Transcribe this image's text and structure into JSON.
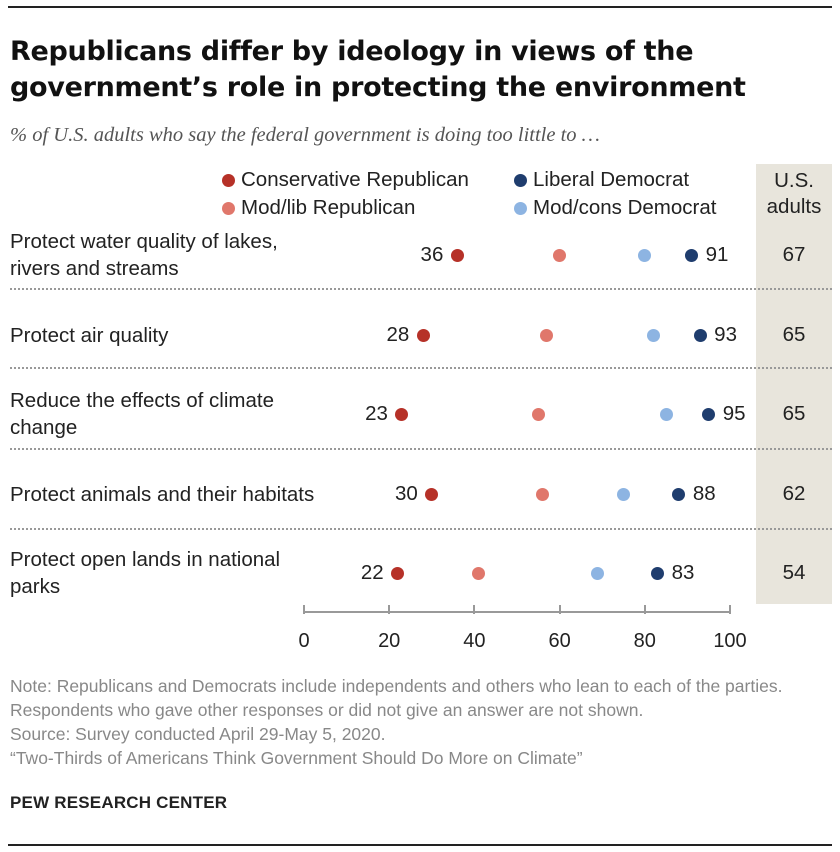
{
  "title": "Republicans differ by ideology in views of the government’s role in protecting the environment",
  "subtitle": "% of U.S. adults who say the federal government is doing too little to …",
  "us_header": "U.S. adults",
  "legend": {
    "conservative_republican": "Conservative Republican",
    "liberal_democrat": "Liberal Democrat",
    "modlib_republican": "Mod/lib Republican",
    "modcons_democrat": "Mod/cons Democrat"
  },
  "colors": {
    "conservative_republican": "#b63128",
    "modlib_republican": "#e0776b",
    "modcons_democrat": "#8db4e2",
    "liberal_democrat": "#1f3d6e",
    "us_column_bg": "#e8e5dc"
  },
  "chart_data": {
    "type": "scatter",
    "title": "Republicans differ by ideology in views of the government’s role in protecting the environment",
    "subtitle": "% of U.S. adults who say the federal government is doing too little to …",
    "xlim": [
      0,
      100
    ],
    "xticks": [
      0,
      20,
      40,
      60,
      80,
      100
    ],
    "categories": [
      "Protect water quality of lakes, rivers and streams",
      "Protect air quality",
      "Reduce the effects of climate change",
      "Protect animals and their habitats",
      "Protect open lands in national parks"
    ],
    "series": [
      {
        "name": "Conservative Republican",
        "values": [
          36,
          28,
          23,
          30,
          22
        ]
      },
      {
        "name": "Mod/lib Republican",
        "values": [
          60,
          57,
          55,
          56,
          41
        ]
      },
      {
        "name": "Mod/cons Democrat",
        "values": [
          80,
          82,
          85,
          75,
          69
        ]
      },
      {
        "name": "Liberal Democrat",
        "values": [
          91,
          93,
          95,
          88,
          83
        ]
      }
    ],
    "us_adults": [
      67,
      65,
      65,
      62,
      54
    ]
  },
  "footer": {
    "note": "Note: Republicans and Democrats include independents and others who lean to each of the parties.  Respondents who gave other responses or did not give an answer are not shown.",
    "source": "Source: Survey conducted April 29-May 5, 2020.",
    "report": "“Two-Thirds of Americans Think Government Should Do More on Climate”",
    "brand": "PEW RESEARCH CENTER"
  }
}
